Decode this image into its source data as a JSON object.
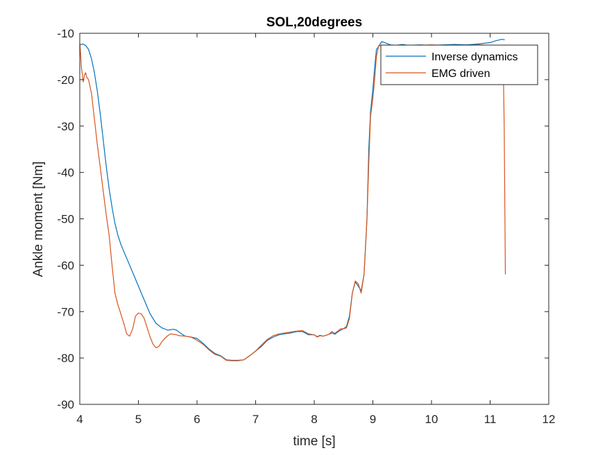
{
  "chart_data": {
    "type": "line",
    "title": "SOL,20degrees",
    "xlabel": "time  [s]",
    "ylabel": "Ankle moment [Nm]",
    "xlim": [
      4,
      12
    ],
    "ylim": [
      -90,
      -10
    ],
    "xticks": [
      4,
      5,
      6,
      7,
      8,
      9,
      10,
      11,
      12
    ],
    "yticks": [
      -90,
      -80,
      -70,
      -60,
      -50,
      -40,
      -30,
      -20,
      -10
    ],
    "grid": false,
    "legend_position": "top-right",
    "series": [
      {
        "name": "Inverse dynamics",
        "color": "#0072BD",
        "x": [
          4.0,
          4.05,
          4.1,
          4.15,
          4.2,
          4.25,
          4.3,
          4.35,
          4.4,
          4.45,
          4.5,
          4.55,
          4.6,
          4.65,
          4.7,
          4.8,
          4.9,
          5.0,
          5.1,
          5.2,
          5.3,
          5.4,
          5.5,
          5.6,
          5.65,
          5.7,
          5.8,
          5.9,
          6.0,
          6.1,
          6.2,
          6.3,
          6.4,
          6.5,
          6.6,
          6.7,
          6.8,
          6.9,
          7.0,
          7.1,
          7.2,
          7.3,
          7.4,
          7.5,
          7.6,
          7.7,
          7.8,
          7.9,
          8.0,
          8.05,
          8.1,
          8.15,
          8.2,
          8.25,
          8.3,
          8.35,
          8.4,
          8.45,
          8.5,
          8.55,
          8.6,
          8.65,
          8.7,
          8.75,
          8.8,
          8.85,
          8.9,
          8.93,
          8.96,
          9.0,
          9.03,
          9.06,
          9.1,
          9.15,
          9.2,
          9.3,
          9.4,
          9.5,
          9.6,
          9.8,
          10.0,
          10.2,
          10.4,
          10.6,
          10.8,
          11.0,
          11.1,
          11.2,
          11.25
        ],
        "values": [
          -12.5,
          -12.3,
          -12.6,
          -13.5,
          -15.5,
          -18.5,
          -22.5,
          -27.5,
          -33.0,
          -38.5,
          -43.5,
          -47.5,
          -51.0,
          -53.5,
          -55.5,
          -58.5,
          -61.5,
          -64.5,
          -67.5,
          -70.5,
          -72.5,
          -73.5,
          -74.0,
          -73.8,
          -74.0,
          -74.5,
          -75.3,
          -75.5,
          -75.8,
          -76.8,
          -78.0,
          -79.0,
          -79.5,
          -80.4,
          -80.5,
          -80.5,
          -80.4,
          -79.5,
          -78.5,
          -77.5,
          -76.2,
          -75.5,
          -75.0,
          -74.8,
          -74.6,
          -74.3,
          -74.3,
          -75.0,
          -75.0,
          -75.4,
          -75.1,
          -75.3,
          -75.1,
          -74.9,
          -74.6,
          -74.9,
          -74.4,
          -74.0,
          -73.7,
          -73.2,
          -71.0,
          -66.0,
          -63.6,
          -64.5,
          -65.5,
          -62.0,
          -50.0,
          -35.0,
          -27.0,
          -22.0,
          -17.5,
          -13.5,
          -12.8,
          -11.8,
          -12.0,
          -12.5,
          -12.6,
          -12.4,
          -12.6,
          -12.5,
          -12.6,
          -12.5,
          -12.4,
          -12.5,
          -12.3,
          -12.0,
          -11.6,
          -11.3,
          -11.4
        ]
      },
      {
        "name": "EMG driven",
        "color": "#D95319",
        "x": [
          4.0,
          4.03,
          4.06,
          4.08,
          4.1,
          4.12,
          4.15,
          4.2,
          4.25,
          4.3,
          4.35,
          4.4,
          4.45,
          4.5,
          4.55,
          4.6,
          4.65,
          4.7,
          4.75,
          4.8,
          4.85,
          4.9,
          4.95,
          5.0,
          5.05,
          5.1,
          5.15,
          5.2,
          5.25,
          5.3,
          5.35,
          5.4,
          5.45,
          5.5,
          5.55,
          5.6,
          5.65,
          5.7,
          5.8,
          5.9,
          6.0,
          6.1,
          6.2,
          6.3,
          6.4,
          6.5,
          6.6,
          6.7,
          6.8,
          6.9,
          7.0,
          7.1,
          7.2,
          7.3,
          7.4,
          7.5,
          7.6,
          7.7,
          7.8,
          7.9,
          8.0,
          8.05,
          8.1,
          8.15,
          8.2,
          8.25,
          8.3,
          8.35,
          8.4,
          8.45,
          8.5,
          8.55,
          8.6,
          8.65,
          8.7,
          8.75,
          8.8,
          8.85,
          8.9,
          8.93,
          8.96,
          9.0,
          9.03,
          9.06,
          9.1,
          9.15,
          9.2,
          9.3,
          9.4,
          9.5,
          9.6,
          9.8,
          10.0,
          10.2,
          10.4,
          10.6,
          10.8,
          11.0,
          11.1,
          11.2,
          11.22,
          11.24,
          11.26
        ],
        "values": [
          -12.0,
          -17.5,
          -20.5,
          -19.0,
          -18.5,
          -19.5,
          -20.0,
          -23.0,
          -28.5,
          -34.0,
          -39.0,
          -44.0,
          -49.0,
          -53.5,
          -60.0,
          -66.0,
          -68.5,
          -70.5,
          -72.5,
          -74.8,
          -75.3,
          -73.8,
          -71.0,
          -70.3,
          -70.5,
          -71.5,
          -73.5,
          -75.5,
          -77.0,
          -77.8,
          -77.5,
          -76.5,
          -75.8,
          -75.2,
          -74.8,
          -74.9,
          -75.0,
          -75.2,
          -75.3,
          -75.5,
          -76.2,
          -77.0,
          -78.2,
          -79.2,
          -79.6,
          -80.5,
          -80.6,
          -80.6,
          -80.4,
          -79.5,
          -78.5,
          -77.2,
          -76.0,
          -75.2,
          -74.8,
          -74.6,
          -74.4,
          -74.2,
          -74.1,
          -74.8,
          -75.0,
          -75.5,
          -75.2,
          -75.3,
          -75.1,
          -74.9,
          -74.3,
          -74.7,
          -74.2,
          -73.7,
          -73.7,
          -73.5,
          -71.5,
          -66.0,
          -63.4,
          -64.0,
          -66.0,
          -62.0,
          -50.0,
          -38.0,
          -28.0,
          -24.0,
          -20.0,
          -15.0,
          -12.6,
          -12.8,
          -12.8,
          -12.6,
          -12.7,
          -12.6,
          -12.7,
          -12.6,
          -12.5,
          -12.6,
          -12.6,
          -12.6,
          -12.5,
          -12.6,
          -12.6,
          -12.6,
          -12.6,
          -30.0,
          -62.0
        ]
      }
    ]
  }
}
